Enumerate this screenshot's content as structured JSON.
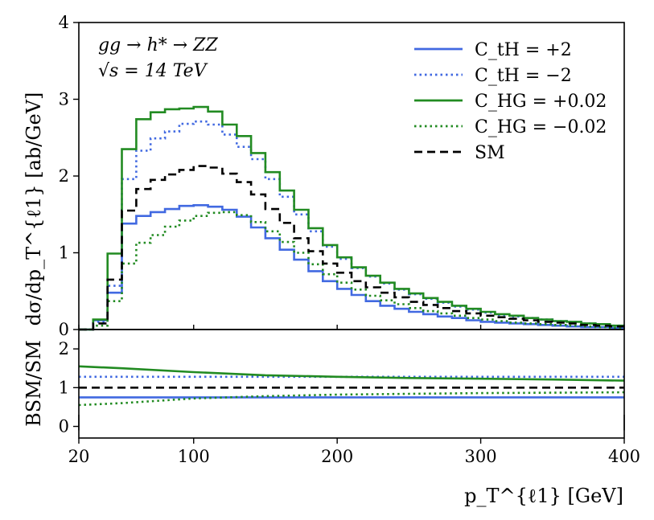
{
  "chart_data": [
    {
      "panel": "main",
      "type": "line",
      "step": true,
      "x_edges": [
        20,
        30,
        40,
        50,
        60,
        70,
        80,
        90,
        100,
        110,
        120,
        130,
        140,
        150,
        160,
        170,
        180,
        190,
        200,
        210,
        220,
        230,
        240,
        250,
        260,
        270,
        280,
        290,
        300,
        310,
        320,
        330,
        340,
        350,
        360,
        370,
        380,
        390,
        400
      ],
      "xlim": [
        20,
        400
      ],
      "ylim": [
        0,
        4
      ],
      "yticks": [
        0,
        1,
        2,
        3,
        4
      ],
      "ylabel": "dσ/dp_T^{ℓ1} [ab/GeV]",
      "annotations": [
        "gg → h* → ZZ",
        "√s = 14 TeV"
      ],
      "legend_position": "top-right",
      "series": [
        {
          "name": "C_tH = +2",
          "color": "#4169e1",
          "style": "solid",
          "values": [
            0.0,
            0.12,
            0.48,
            1.38,
            1.48,
            1.53,
            1.57,
            1.61,
            1.62,
            1.6,
            1.56,
            1.47,
            1.33,
            1.19,
            1.04,
            0.91,
            0.76,
            0.63,
            0.53,
            0.45,
            0.37,
            0.31,
            0.27,
            0.23,
            0.2,
            0.17,
            0.15,
            0.12,
            0.1,
            0.09,
            0.08,
            0.07,
            0.06,
            0.05,
            0.04,
            0.03,
            0.03,
            0.02
          ]
        },
        {
          "name": "C_tH = −2",
          "color": "#4169e1",
          "style": "dotted",
          "values": [
            0.0,
            0.1,
            0.57,
            1.96,
            2.33,
            2.49,
            2.58,
            2.68,
            2.71,
            2.67,
            2.54,
            2.38,
            2.22,
            1.96,
            1.73,
            1.5,
            1.28,
            1.08,
            0.92,
            0.8,
            0.69,
            0.6,
            0.52,
            0.46,
            0.4,
            0.35,
            0.3,
            0.26,
            0.22,
            0.19,
            0.17,
            0.15,
            0.13,
            0.11,
            0.1,
            0.08,
            0.07,
            0.05
          ]
        },
        {
          "name": "C_HG = +0.02",
          "color": "#228b22",
          "style": "solid",
          "values": [
            0.0,
            0.13,
            0.99,
            2.35,
            2.74,
            2.83,
            2.87,
            2.88,
            2.9,
            2.84,
            2.67,
            2.52,
            2.3,
            2.05,
            1.81,
            1.56,
            1.32,
            1.1,
            0.94,
            0.81,
            0.7,
            0.61,
            0.53,
            0.47,
            0.41,
            0.36,
            0.31,
            0.27,
            0.23,
            0.2,
            0.18,
            0.15,
            0.13,
            0.11,
            0.1,
            0.08,
            0.07,
            0.05
          ]
        },
        {
          "name": "C_HG = −0.02",
          "color": "#228b22",
          "style": "dotted",
          "values": [
            0.0,
            0.05,
            0.37,
            0.86,
            1.13,
            1.23,
            1.34,
            1.42,
            1.48,
            1.52,
            1.53,
            1.49,
            1.4,
            1.28,
            1.14,
            1.0,
            0.85,
            0.72,
            0.61,
            0.52,
            0.44,
            0.38,
            0.33,
            0.28,
            0.24,
            0.21,
            0.18,
            0.15,
            0.13,
            0.11,
            0.09,
            0.08,
            0.07,
            0.06,
            0.05,
            0.04,
            0.03,
            0.02
          ]
        },
        {
          "name": "SM",
          "color": "#000000",
          "style": "dashed",
          "values": [
            0.0,
            0.08,
            0.65,
            1.55,
            1.83,
            1.95,
            2.02,
            2.08,
            2.13,
            2.11,
            2.03,
            1.92,
            1.76,
            1.57,
            1.39,
            1.19,
            1.02,
            0.86,
            0.74,
            0.63,
            0.55,
            0.48,
            0.42,
            0.36,
            0.32,
            0.28,
            0.24,
            0.21,
            0.18,
            0.16,
            0.14,
            0.12,
            0.1,
            0.09,
            0.08,
            0.06,
            0.05,
            0.04
          ]
        }
      ]
    },
    {
      "panel": "ratio",
      "type": "line",
      "xlim": [
        20,
        400
      ],
      "ylim": [
        -0.3,
        2.5
      ],
      "yticks": [
        0,
        1,
        2
      ],
      "xticks": [
        20,
        100,
        200,
        300,
        400
      ],
      "xlabel": "p_T^{ℓ1} [GeV]",
      "ylabel": "BSM/SM",
      "series": [
        {
          "name": "C_tH = +2",
          "color": "#4169e1",
          "style": "solid",
          "x": [
            20,
            400
          ],
          "values": [
            0.75,
            0.75
          ]
        },
        {
          "name": "C_tH = −2",
          "color": "#4169e1",
          "style": "dotted",
          "x": [
            20,
            400
          ],
          "values": [
            1.28,
            1.28
          ]
        },
        {
          "name": "C_HG = +0.02",
          "color": "#228b22",
          "style": "solid",
          "x": [
            20,
            50,
            100,
            150,
            200,
            250,
            300,
            350,
            400
          ],
          "values": [
            1.55,
            1.5,
            1.4,
            1.32,
            1.28,
            1.25,
            1.23,
            1.21,
            1.18
          ]
        },
        {
          "name": "C_HG = −0.02",
          "color": "#228b22",
          "style": "dotted",
          "x": [
            20,
            50,
            100,
            150,
            200,
            250,
            300,
            350,
            400
          ],
          "values": [
            0.55,
            0.6,
            0.72,
            0.78,
            0.82,
            0.84,
            0.86,
            0.87,
            0.88
          ]
        },
        {
          "name": "SM",
          "color": "#000000",
          "style": "dashed",
          "x": [
            20,
            400
          ],
          "values": [
            1.0,
            1.0
          ]
        }
      ]
    }
  ]
}
